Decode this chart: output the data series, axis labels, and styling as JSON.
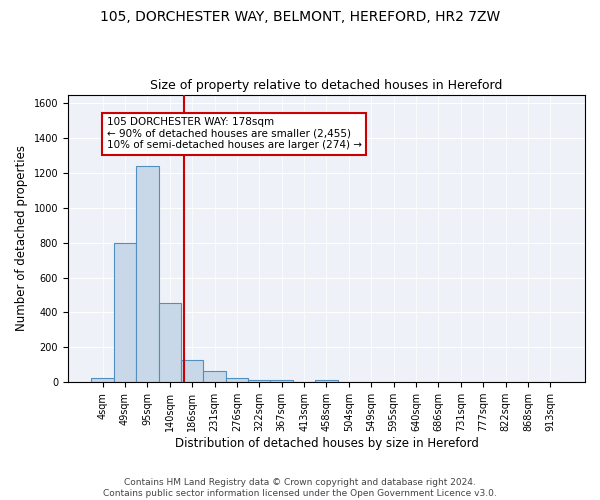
{
  "title1": "105, DORCHESTER WAY, BELMONT, HEREFORD, HR2 7ZW",
  "title2": "Size of property relative to detached houses in Hereford",
  "xlabel": "Distribution of detached houses by size in Hereford",
  "ylabel": "Number of detached properties",
  "bin_labels": [
    "4sqm",
    "49sqm",
    "95sqm",
    "140sqm",
    "186sqm",
    "231sqm",
    "276sqm",
    "322sqm",
    "367sqm",
    "413sqm",
    "458sqm",
    "504sqm",
    "549sqm",
    "595sqm",
    "640sqm",
    "686sqm",
    "731sqm",
    "777sqm",
    "822sqm",
    "868sqm",
    "913sqm"
  ],
  "bar_heights": [
    25,
    800,
    1240,
    455,
    130,
    62,
    25,
    15,
    12,
    0,
    12,
    0,
    0,
    0,
    0,
    0,
    0,
    0,
    0,
    0,
    0
  ],
  "bar_color": "#c8d8e8",
  "bar_edge_color": "#5090c0",
  "vline_x": 3.65,
  "vline_color": "#cc0000",
  "annotation_box_text": "105 DORCHESTER WAY: 178sqm\n← 90% of detached houses are smaller (2,455)\n10% of semi-detached houses are larger (274) →",
  "annotation_fontsize": 7.5,
  "box_edge_color": "#cc0000",
  "ylim": [
    0,
    1650
  ],
  "yticks": [
    0,
    200,
    400,
    600,
    800,
    1000,
    1200,
    1400,
    1600
  ],
  "background_color": "#eef2f8",
  "footer_text": "Contains HM Land Registry data © Crown copyright and database right 2024.\nContains public sector information licensed under the Open Government Licence v3.0.",
  "title1_fontsize": 10,
  "title2_fontsize": 9,
  "xlabel_fontsize": 8.5,
  "ylabel_fontsize": 8.5,
  "footer_fontsize": 6.5,
  "tick_fontsize": 7
}
